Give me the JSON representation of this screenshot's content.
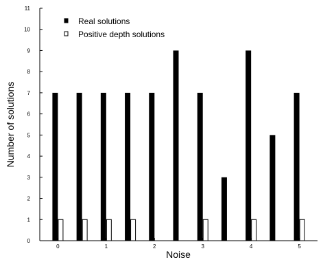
{
  "chart_data": {
    "type": "bar",
    "xlabel": "Noise",
    "ylabel": "Number of solutions",
    "title": "",
    "ylim": [
      0,
      11
    ],
    "yticks": [
      0,
      1,
      2,
      3,
      4,
      5,
      6,
      7,
      8,
      9,
      10,
      11
    ],
    "xlim": [
      -0.375,
      5.375
    ],
    "xticks": [
      0,
      1,
      2,
      3,
      4,
      5
    ],
    "bar_positions": [
      0,
      0.5,
      1,
      1.5,
      2,
      2.5,
      3,
      3.5,
      4,
      4.5,
      5
    ],
    "series": [
      {
        "name": "Real solutions",
        "color": "#000000",
        "values": [
          7,
          7,
          7,
          7,
          7,
          9,
          7,
          3,
          9,
          5,
          7
        ]
      },
      {
        "name": "Positive depth solutions",
        "color": "#ffffff",
        "values": [
          1,
          1,
          1,
          1,
          0,
          0,
          1,
          0,
          1,
          0,
          1
        ]
      }
    ],
    "legend_position": "top-left",
    "grid": false
  }
}
